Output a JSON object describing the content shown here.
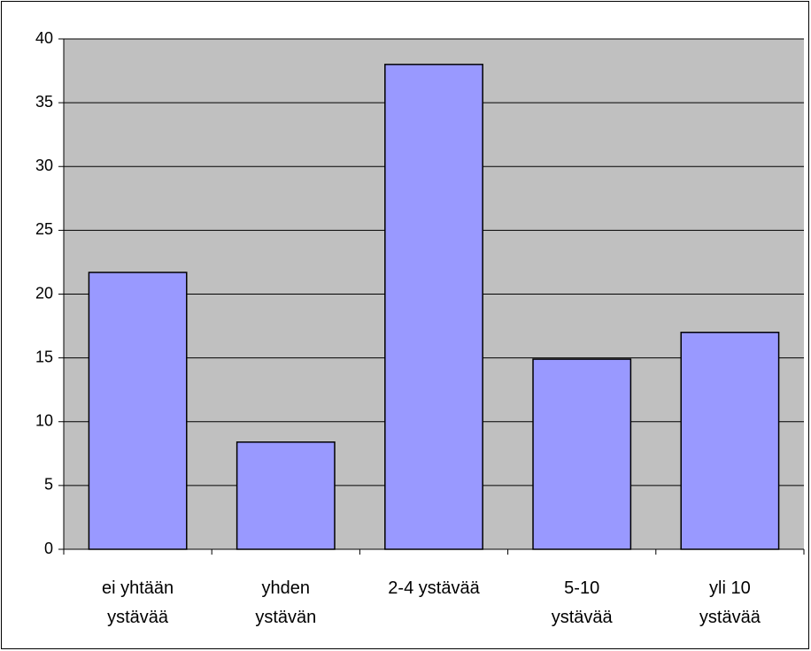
{
  "chart_data": {
    "type": "bar",
    "categories": [
      "ei yhtään ystävää",
      "yhden ystävän",
      "2-4 ystävää",
      "5-10 ystävää",
      "yli 10 ystävää"
    ],
    "values": [
      21.7,
      8.4,
      38,
      14.9,
      17.0
    ],
    "color": "#9999ff",
    "ylim": [
      0,
      40
    ],
    "yticks": [
      0,
      5,
      10,
      15,
      20,
      25,
      30,
      35,
      40
    ],
    "grid": true
  }
}
